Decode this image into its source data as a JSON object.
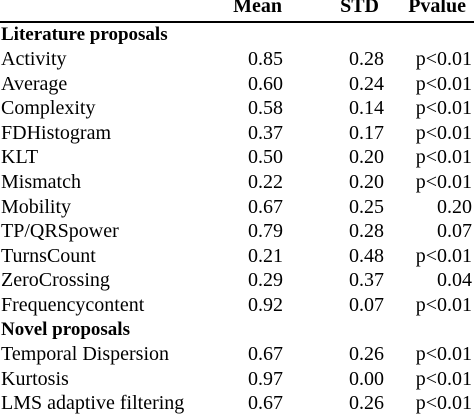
{
  "header": {
    "mean": "Mean",
    "std": "STD",
    "pvalue": "Pvalue"
  },
  "sections": [
    {
      "title": "Literature proposals",
      "rows": [
        {
          "name": "Activity",
          "mean": "0.85",
          "std": "0.28",
          "pvalue": "p<0.01"
        },
        {
          "name": "Average",
          "mean": "0.60",
          "std": "0.24",
          "pvalue": "p<0.01"
        },
        {
          "name": "Complexity",
          "mean": "0.58",
          "std": "0.14",
          "pvalue": "p<0.01"
        },
        {
          "name": "FDHistogram",
          "mean": "0.37",
          "std": "0.17",
          "pvalue": "p<0.01"
        },
        {
          "name": "KLT",
          "mean": "0.50",
          "std": "0.20",
          "pvalue": "p<0.01"
        },
        {
          "name": "Mismatch",
          "mean": "0.22",
          "std": "0.20",
          "pvalue": "p<0.01"
        },
        {
          "name": "Mobility",
          "mean": "0.67",
          "std": "0.25",
          "pvalue": "0.20"
        },
        {
          "name": "TP/QRSpower",
          "mean": "0.79",
          "std": "0.28",
          "pvalue": "0.07"
        },
        {
          "name": "TurnsCount",
          "mean": "0.21",
          "std": "0.48",
          "pvalue": "p<0.01"
        },
        {
          "name": "ZeroCrossing",
          "mean": "0.29",
          "std": "0.37",
          "pvalue": "0.04"
        },
        {
          "name": "Frequencycontent",
          "mean": "0.92",
          "std": "0.07",
          "pvalue": "p<0.01"
        }
      ]
    },
    {
      "title": "Novel proposals",
      "rows": [
        {
          "name": "Temporal Dispersion",
          "mean": "0.67",
          "std": "0.26",
          "pvalue": "p<0.01"
        },
        {
          "name": "Kurtosis",
          "mean": "0.97",
          "std": "0.00",
          "pvalue": "p<0.01"
        },
        {
          "name": "LMS adaptive filtering",
          "mean": "0.67",
          "std": "0.26",
          "pvalue": "p<0.01"
        }
      ]
    }
  ]
}
